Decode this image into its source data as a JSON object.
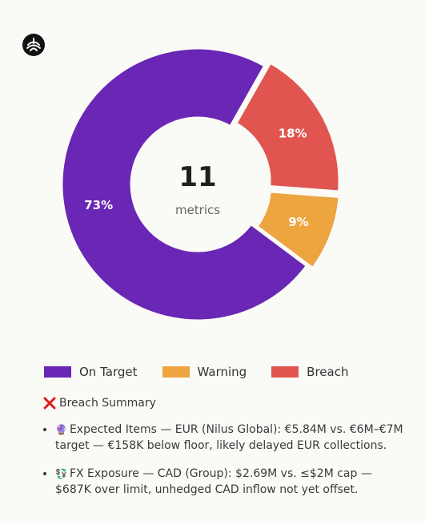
{
  "chart_data": {
    "type": "pie",
    "donut": true,
    "center": {
      "value": "11",
      "label": "metrics"
    },
    "slices": [
      {
        "name": "On Target",
        "value": 73,
        "label": "73%",
        "color": "#6a26b5"
      },
      {
        "name": "Warning",
        "value": 9,
        "label": "9%",
        "color": "#eca53f"
      },
      {
        "name": "Breach",
        "value": 18,
        "label": "18%",
        "color": "#e0554f"
      }
    ],
    "legend_position": "bottom"
  },
  "summary": {
    "title": "Breach Summary",
    "items": [
      {
        "icon": "crystal-ball-icon",
        "emoji": "🔮",
        "text": "Expected Items — EUR (Nilus Global): €5.84M vs. €6M–€7M target — €158K below floor, likely delayed EUR collections."
      },
      {
        "icon": "currency-exchange-icon",
        "emoji": "💱",
        "text": "FX Exposure — CAD (Group): $2.69M vs. ≤$2M cap — $687K over limit, unhedged CAD inflow not yet offset."
      }
    ]
  }
}
